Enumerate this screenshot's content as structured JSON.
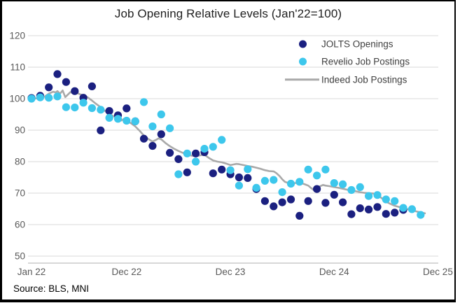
{
  "title": "Job Opening Relative Levels (Jan'22=100)",
  "source": "Source: BLS, MNI",
  "colors": {
    "grid": "#d9d9d9",
    "axis_line": "#bfbfbf",
    "axis_text": "#595959",
    "title_text": "#1f1f1f",
    "legend_text": "#3f3f3f",
    "background": "#ffffff",
    "border": "#000000"
  },
  "chart_data": {
    "type": "scatter",
    "title": "Job Opening Relative Levels (Jan'22=100)",
    "xlabel": "",
    "ylabel": "",
    "x_start_label": "Jan 22",
    "y_axis": {
      "min": 50,
      "max": 120,
      "step": 10,
      "tick_labels": [
        "120",
        "110",
        "100",
        "90",
        "80",
        "70",
        "60",
        "50"
      ]
    },
    "x_axis": {
      "unit": "month-index from Jan 2022",
      "range_months": [
        0,
        47
      ],
      "ticks": [
        {
          "month": 0,
          "label": "Jan 22"
        },
        {
          "month": 11,
          "label": "Dec 22"
        },
        {
          "month": 23,
          "label": "Dec 23"
        },
        {
          "month": 35,
          "label": "Dec 24"
        },
        {
          "month": 47,
          "label": "Dec 25"
        }
      ]
    },
    "grid": "horizontal",
    "legend_position": "top-right-inside",
    "series": [
      {
        "name": "JOLTS Openings",
        "type": "scatter",
        "color": "#1b2080",
        "start_month": 0,
        "values": [
          100.2,
          100.9,
          103.6,
          107.8,
          105.3,
          102.4,
          100.3,
          103.9,
          89.9,
          96.1,
          94.7,
          96.9,
          92.8,
          87.3,
          85.0,
          88.7,
          82.8,
          80.8,
          76.6,
          82.6,
          83.0,
          76.3,
          77.5,
          76.0,
          75.0,
          74.8,
          71.3,
          67.5,
          65.8,
          67.1,
          68.0,
          62.8,
          67.5,
          71.3,
          66.9,
          69.5,
          67.1,
          63.3,
          65.2,
          64.8,
          65.6,
          63.4,
          63.8,
          64.7
        ]
      },
      {
        "name": "Revelio Job Postings",
        "type": "scatter",
        "color": "#3dc7ec",
        "start_month": 0,
        "values": [
          100.0,
          100.4,
          100.3,
          100.7,
          97.3,
          97.2,
          98.7,
          97.0,
          96.5,
          93.9,
          93.6,
          93.0,
          92.8,
          98.9,
          91.2,
          95.0,
          90.6,
          76.0,
          82.6,
          80.0,
          84.1,
          84.7,
          86.9,
          77.3,
          72.4,
          77.6,
          71.7,
          73.9,
          74.2,
          70.3,
          73.0,
          73.6,
          77.5,
          75.6,
          77.5,
          73.2,
          72.8,
          71.0,
          71.9,
          69.1,
          69.4,
          68.0,
          67.5,
          65.3,
          64.9,
          63.1
        ]
      },
      {
        "name": "Indeed Job Postings",
        "type": "line",
        "color": "#a9a9a9",
        "points": [
          [
            0,
            100
          ],
          [
            0.6,
            100.1
          ],
          [
            1,
            100.3
          ],
          [
            1.5,
            100.6
          ],
          [
            2,
            101.6
          ],
          [
            2.5,
            102.2
          ],
          [
            2.8,
            102.0
          ],
          [
            3,
            102.4
          ],
          [
            3.3,
            101.6
          ],
          [
            3.6,
            102.6
          ],
          [
            3.9,
            100.5
          ],
          [
            4.1,
            101.0
          ],
          [
            4.5,
            102.1
          ],
          [
            4.8,
            101.8
          ],
          [
            5.2,
            101.9
          ],
          [
            5.6,
            101.4
          ],
          [
            6,
            101.1
          ],
          [
            6.5,
            100.4
          ],
          [
            7,
            99.4
          ],
          [
            7.5,
            98.3
          ],
          [
            8,
            97.3
          ],
          [
            8.5,
            96.1
          ],
          [
            9,
            95.1
          ],
          [
            9.5,
            94.4
          ],
          [
            10,
            93.7
          ],
          [
            10.4,
            93.1
          ],
          [
            10.7,
            93.6
          ],
          [
            11,
            93.1
          ],
          [
            11.5,
            92.2
          ],
          [
            12,
            91.2
          ],
          [
            12.5,
            89.8
          ],
          [
            13,
            88.3
          ],
          [
            13.5,
            87.2
          ],
          [
            14,
            86.4
          ],
          [
            14.4,
            86.9
          ],
          [
            14.7,
            87.4
          ],
          [
            15,
            87.1
          ],
          [
            15.5,
            85.9
          ],
          [
            16,
            84.9
          ],
          [
            16.5,
            84.1
          ],
          [
            17,
            83.4
          ],
          [
            17.5,
            82.8
          ],
          [
            18,
            82.3
          ],
          [
            18.5,
            81.9
          ],
          [
            19,
            81.7
          ],
          [
            19.5,
            82.0
          ],
          [
            20,
            82.2
          ],
          [
            20.5,
            81.2
          ],
          [
            21,
            80.4
          ],
          [
            21.5,
            80.0
          ],
          [
            22,
            79.8
          ],
          [
            22.5,
            79.4
          ],
          [
            23,
            78.9
          ],
          [
            23.3,
            79.1
          ],
          [
            23.7,
            79.3
          ],
          [
            24,
            79.2
          ],
          [
            24.5,
            78.9
          ],
          [
            25,
            78.6
          ],
          [
            25.5,
            78.4
          ],
          [
            26,
            78.1
          ],
          [
            26.5,
            77.7
          ],
          [
            27,
            77.3
          ],
          [
            27.5,
            77.0
          ],
          [
            28,
            76.9
          ],
          [
            28.3,
            76.4
          ],
          [
            28.7,
            75.4
          ],
          [
            29,
            74.4
          ],
          [
            29.3,
            73.6
          ],
          [
            29.7,
            73.2
          ],
          [
            30,
            72.9
          ],
          [
            30.5,
            73.2
          ],
          [
            31,
            73.3
          ],
          [
            31.5,
            72.9
          ],
          [
            32,
            72.4
          ],
          [
            32.3,
            71.7
          ],
          [
            32.7,
            70.9
          ],
          [
            33,
            71.4
          ],
          [
            33.3,
            72.1
          ],
          [
            33.7,
            72.6
          ],
          [
            34,
            72.4
          ],
          [
            34.5,
            72.2
          ],
          [
            35,
            71.9
          ],
          [
            35.5,
            71.7
          ],
          [
            36,
            71.4
          ],
          [
            36.5,
            71.1
          ],
          [
            37,
            70.8
          ],
          [
            37.5,
            70.6
          ],
          [
            38,
            70.3
          ],
          [
            38.5,
            70.1
          ],
          [
            39,
            70.0
          ],
          [
            39.5,
            69.9
          ],
          [
            40,
            69.4
          ],
          [
            40.5,
            68.4
          ],
          [
            41,
            67.3
          ],
          [
            41.5,
            66.6
          ],
          [
            42,
            66.0
          ],
          [
            42.5,
            65.6
          ],
          [
            43,
            65.3
          ],
          [
            43.5,
            64.9
          ],
          [
            44,
            64.6
          ],
          [
            44.5,
            64.2
          ],
          [
            45,
            63.9
          ],
          [
            45.5,
            63.6
          ]
        ]
      }
    ]
  }
}
